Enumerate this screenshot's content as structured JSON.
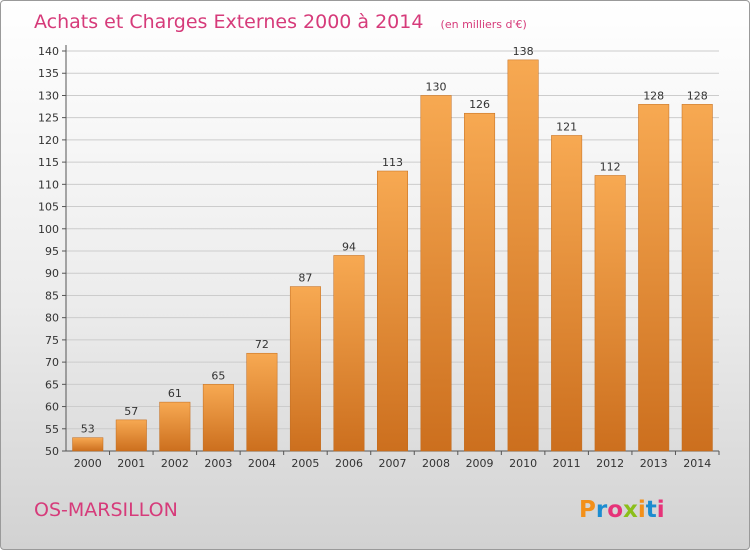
{
  "title": "Achats et Charges Externes 2000 à 2014",
  "unit": "(en milliers d'€)",
  "location": "OS-MARSILLON",
  "logo": {
    "text": "Proxiti",
    "letter_colors": [
      "#f39019",
      "#1b8cd0",
      "#e63379",
      "#8bbf1a",
      "#f39019",
      "#1b8cd0",
      "#e63379"
    ]
  },
  "colors": {
    "title": "#d63b7a",
    "bar_light": "#f7a952",
    "bar_dark": "#cc6f1e",
    "grid": "#cccccc"
  },
  "chart_data": {
    "type": "bar",
    "title": "Achats et Charges Externes 2000 à 2014",
    "xlabel": "",
    "ylabel": "",
    "categories": [
      "2000",
      "2001",
      "2002",
      "2003",
      "2004",
      "2005",
      "2006",
      "2007",
      "2008",
      "2009",
      "2010",
      "2011",
      "2012",
      "2013",
      "2014"
    ],
    "values": [
      53,
      57,
      61,
      65,
      72,
      87,
      94,
      113,
      130,
      126,
      138,
      121,
      112,
      128,
      128
    ],
    "ylim": [
      50,
      140
    ],
    "yticks": [
      50,
      55,
      60,
      65,
      70,
      75,
      80,
      85,
      90,
      95,
      100,
      105,
      110,
      115,
      120,
      125,
      130,
      135,
      140
    ],
    "grid": true,
    "data_labels": true
  }
}
